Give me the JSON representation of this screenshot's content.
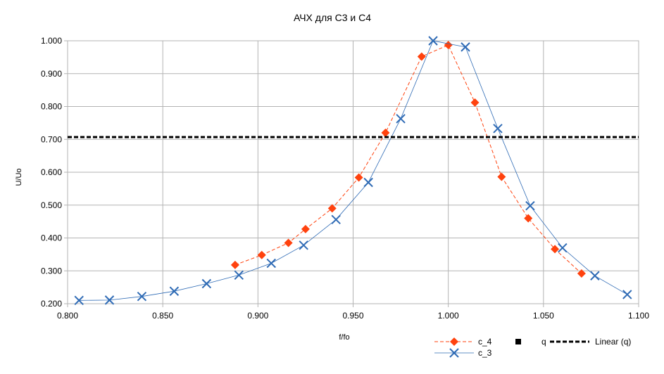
{
  "chart_data": {
    "type": "line",
    "title": "АЧХ для С3 и С4",
    "xlabel": "f/fo",
    "ylabel": "U/Uo",
    "xlim": [
      0.8,
      1.1
    ],
    "ylim": [
      0.2,
      1.0
    ],
    "x_ticks": [
      "0.800",
      "0.850",
      "0.900",
      "0.950",
      "1.000",
      "1.050",
      "1.100"
    ],
    "y_ticks": [
      "0.200",
      "0.300",
      "0.400",
      "0.500",
      "0.600",
      "0.700",
      "0.800",
      "0.900",
      "1.000"
    ],
    "grid": true,
    "series": [
      {
        "name": "c_4",
        "color": "#ff420e",
        "marker": "diamond",
        "line": "dashed",
        "points": [
          [
            0.888,
            0.318
          ],
          [
            0.902,
            0.348
          ],
          [
            0.916,
            0.385
          ],
          [
            0.925,
            0.427
          ],
          [
            0.939,
            0.49
          ],
          [
            0.953,
            0.584
          ],
          [
            0.967,
            0.72
          ],
          [
            0.986,
            0.952
          ],
          [
            1.0,
            0.987
          ],
          [
            1.014,
            0.812
          ],
          [
            1.028,
            0.586
          ],
          [
            1.042,
            0.46
          ],
          [
            1.056,
            0.366
          ],
          [
            1.07,
            0.292
          ]
        ]
      },
      {
        "name": "c_3",
        "color": "#2f6bb5",
        "marker": "x",
        "line": "solid-thin",
        "points": [
          [
            0.806,
            0.21
          ],
          [
            0.822,
            0.211
          ],
          [
            0.839,
            0.222
          ],
          [
            0.856,
            0.238
          ],
          [
            0.873,
            0.261
          ],
          [
            0.89,
            0.287
          ],
          [
            0.907,
            0.323
          ],
          [
            0.924,
            0.378
          ],
          [
            0.941,
            0.456
          ],
          [
            0.958,
            0.569
          ],
          [
            0.975,
            0.763
          ],
          [
            0.992,
            1.0
          ],
          [
            1.009,
            0.981
          ],
          [
            1.026,
            0.733
          ],
          [
            1.043,
            0.498
          ],
          [
            1.06,
            0.37
          ],
          [
            1.077,
            0.285
          ],
          [
            1.094,
            0.228
          ]
        ]
      },
      {
        "name": "q",
        "color": "#000000",
        "marker": "square",
        "line": "none",
        "points": []
      },
      {
        "name": "Linear (q)",
        "color": "#000000",
        "marker": "none",
        "line": "thick-dashed",
        "points": [
          [
            0.8,
            0.707
          ],
          [
            1.1,
            0.707
          ]
        ]
      }
    ],
    "legend_position": "bottom-right"
  }
}
